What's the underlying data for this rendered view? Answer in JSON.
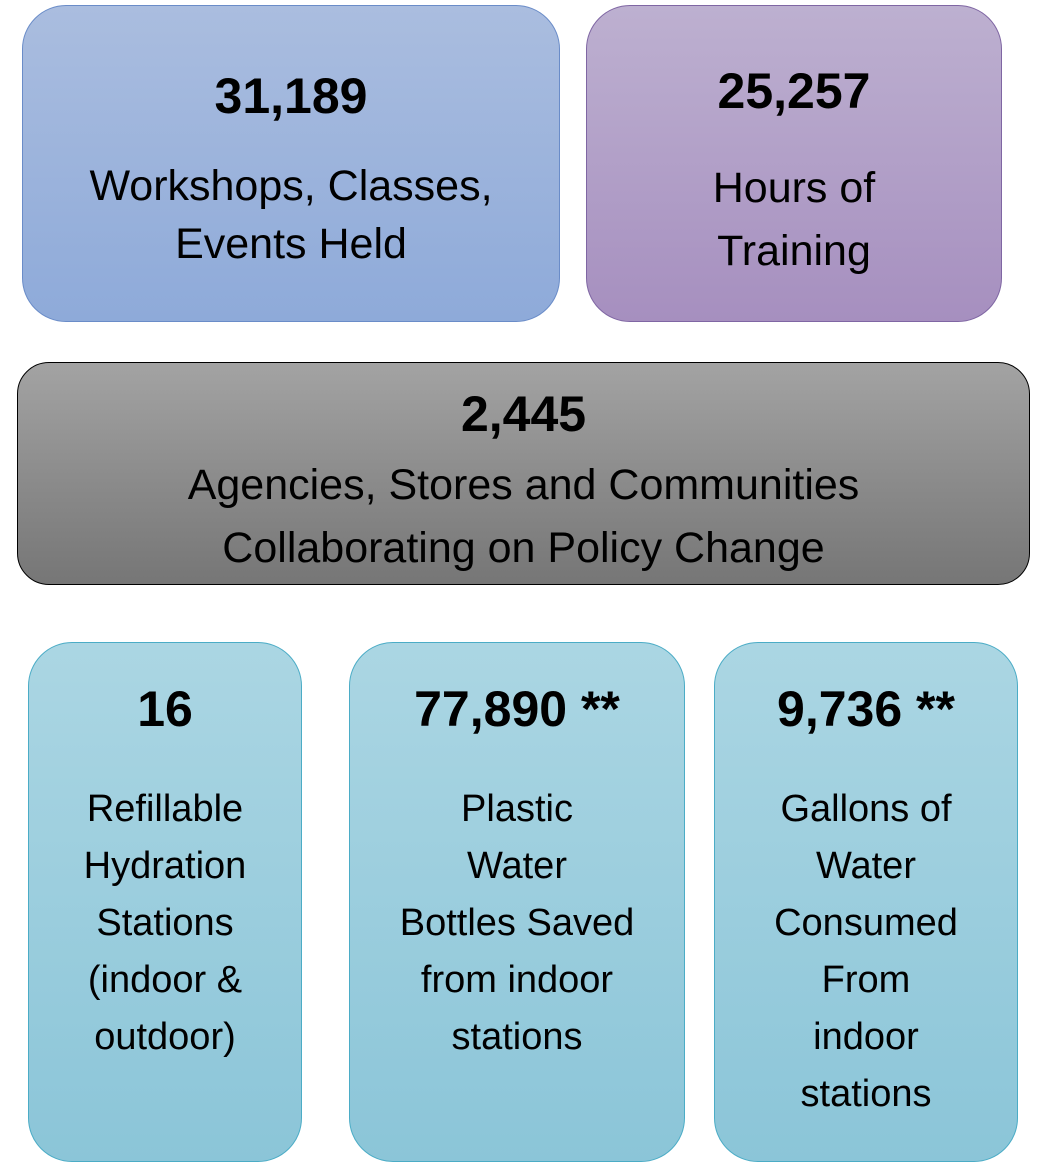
{
  "cards": [
    {
      "value": "31,189",
      "label": [
        "Workshops, Classes,",
        "Events Held"
      ]
    },
    {
      "value": "25,257",
      "label": [
        "Hours of",
        "Training"
      ]
    },
    {
      "value": "2,445",
      "label": [
        "Agencies, Stores and Communities",
        "Collaborating on Policy Change"
      ]
    },
    {
      "value": "16",
      "label": [
        "Refillable",
        "Hydration",
        "Stations",
        "(indoor &",
        "outdoor)"
      ]
    },
    {
      "value": "77,890 **",
      "label": [
        "Plastic",
        "Water",
        "Bottles Saved",
        "from indoor",
        "stations"
      ]
    },
    {
      "value": "9,736 **",
      "label": [
        "Gallons of",
        "Water",
        "Consumed",
        "From",
        "indoor",
        "stations"
      ]
    }
  ]
}
